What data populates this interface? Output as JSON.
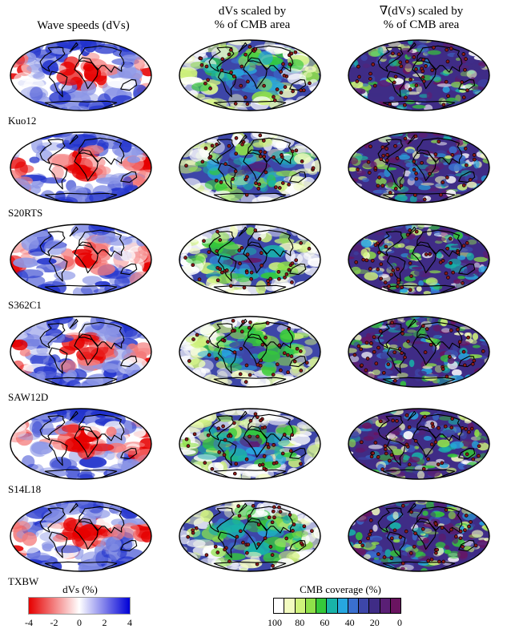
{
  "columns": [
    {
      "title": "Wave speeds (dVs)"
    },
    {
      "title": "dVs scaled by\n% of CMB area"
    },
    {
      "title": "∇(dVs) scaled by\n% of CMB area"
    }
  ],
  "models": [
    {
      "label": "Kuo12"
    },
    {
      "label": "S20RTS"
    },
    {
      "label": "S362C1"
    },
    {
      "label": "SAW12D"
    },
    {
      "label": "S14L18"
    },
    {
      "label": "TXBW"
    }
  ],
  "colorbars": {
    "dvs": {
      "title": "dVs (%)",
      "ticks": [
        "-4",
        "-2",
        "0",
        "2",
        "4"
      ],
      "colors": [
        "#e60000",
        "#ffffff",
        "#0000d6"
      ]
    },
    "cmb": {
      "title": "CMB coverage (%)",
      "ticks": [
        "100",
        "80",
        "60",
        "40",
        "20",
        "0"
      ],
      "colors": [
        "#ffffff",
        "#f2fbc0",
        "#cff27b",
        "#8fe04a",
        "#35c93a",
        "#18b3a8",
        "#27a7e0",
        "#3a6fcf",
        "#3d46a8",
        "#3f2c86",
        "#5a1f75",
        "#6a1460"
      ]
    }
  },
  "palette": {
    "red": "#e60000",
    "blue": "#0000d6",
    "purple": "#6a1460",
    "hotspot_fill": "#8b1a1a"
  }
}
